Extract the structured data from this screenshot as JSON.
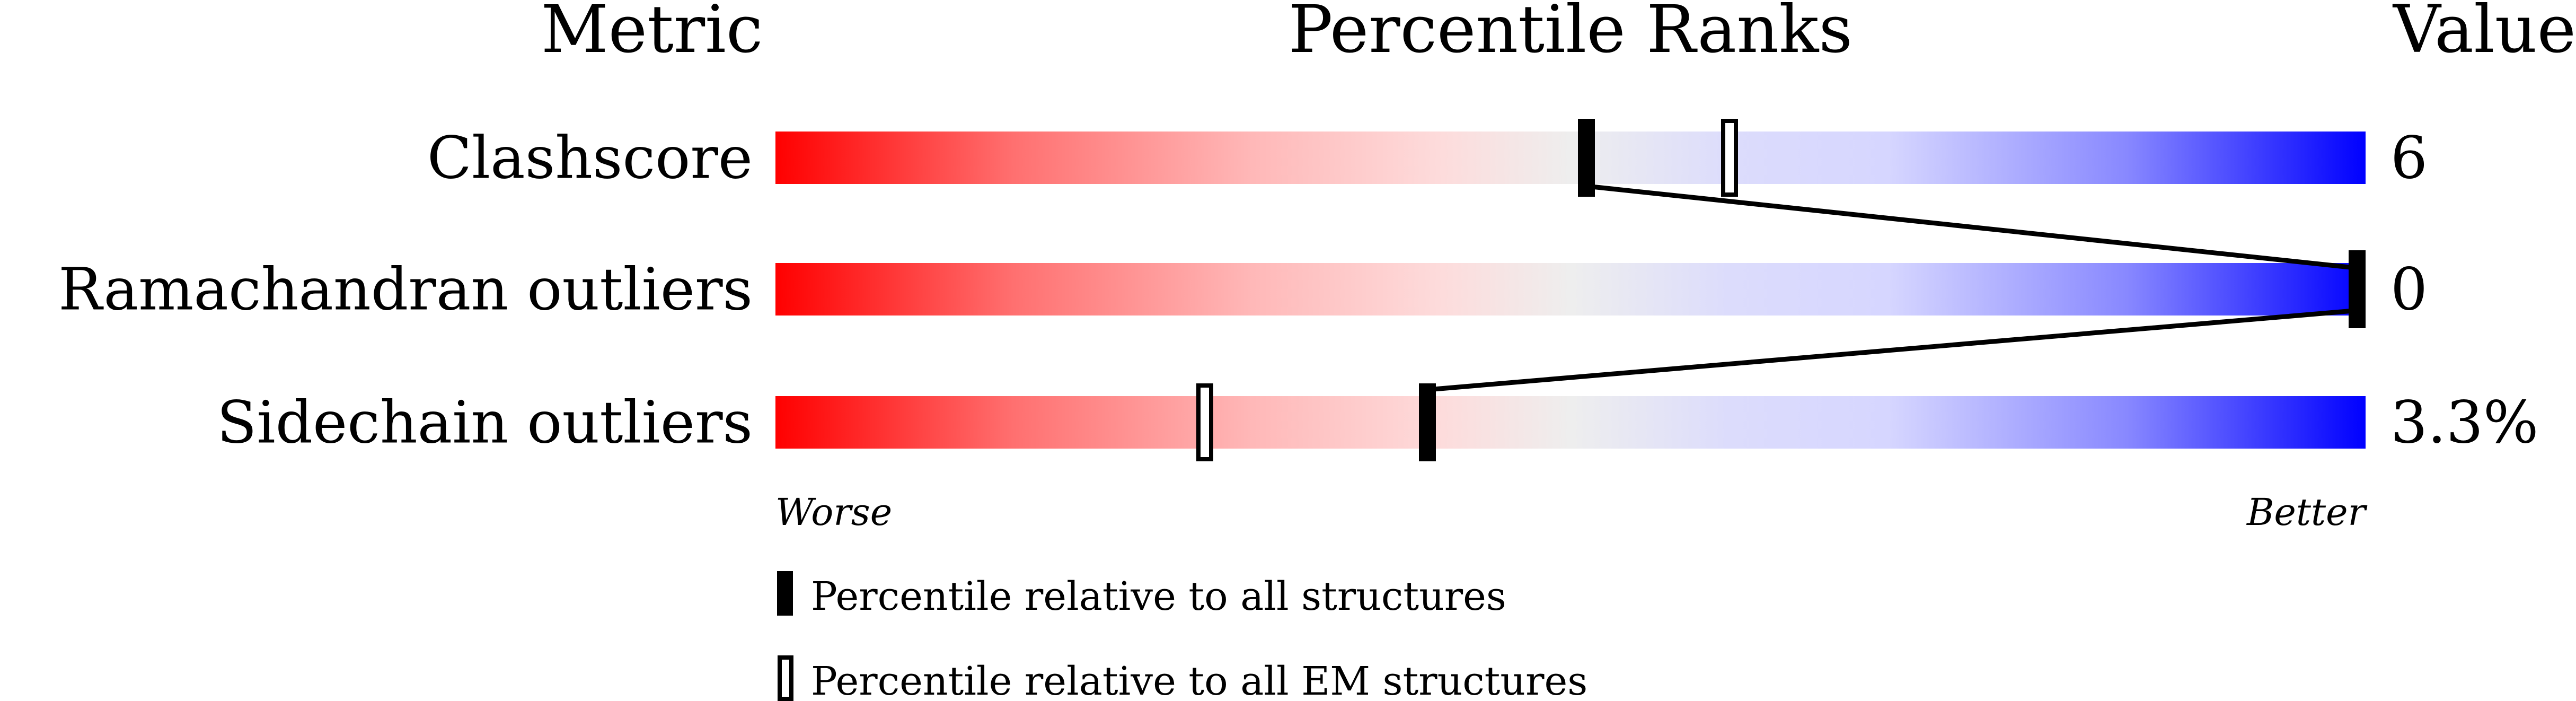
{
  "headers": {
    "metric": "Metric",
    "ranks": "Percentile Ranks",
    "value": "Value"
  },
  "axis": {
    "worse": "Worse",
    "better": "Better"
  },
  "legend": {
    "all": "Percentile relative to all structures",
    "em": "Percentile relative to all EM structures"
  },
  "colors": {
    "worse": "#ff0000",
    "neutral": "#eeeeee",
    "better": "#0000ff",
    "marker": "#000000"
  },
  "chart_data": {
    "type": "bar",
    "xlim": [
      0,
      100
    ],
    "xlabel_left": "Worse",
    "xlabel_right": "Better",
    "categories": [
      "Clashscore",
      "Ramachandran outliers",
      "Sidechain outliers"
    ],
    "values_text": [
      "6",
      "0",
      "3.3%"
    ],
    "series": [
      {
        "name": "Percentile relative to all structures",
        "values": [
          51,
          100,
          41
        ]
      },
      {
        "name": "Percentile relative to all EM structures",
        "values": [
          60,
          null,
          27
        ]
      }
    ]
  }
}
